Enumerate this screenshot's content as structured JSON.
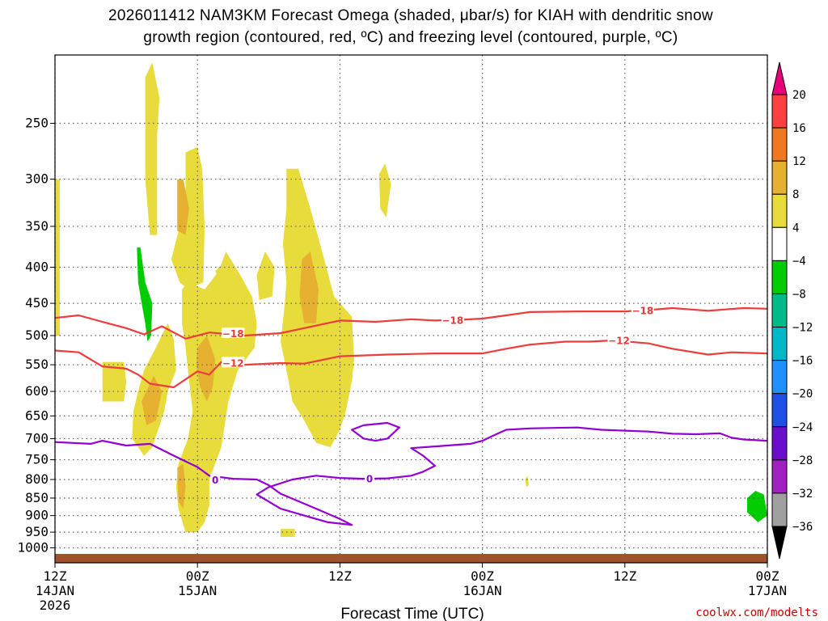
{
  "title_line1": "2026011412 NAM3KM Forecast Omega (shaded, μbar/s) for KIAH with dendritic snow",
  "title_line2": "growth region (contoured, red, ºC) and freezing level (contoured, purple, ºC)",
  "credit": "coolwx.com/modelts",
  "chart_data": {
    "type": "time-height",
    "xlabel": "Forecast Time (UTC)",
    "ylabel": "",
    "x_range_hours": [
      0,
      60
    ],
    "y_range_hpa": [
      1050,
      200
    ],
    "y_scale": "log",
    "grid": true,
    "y_ticks": [
      250,
      300,
      350,
      400,
      450,
      500,
      550,
      600,
      650,
      700,
      750,
      800,
      850,
      900,
      950,
      1000
    ],
    "x_ticks": [
      {
        "hour": 0,
        "label": "12Z",
        "sub": "14JAN",
        "sub2": "2026"
      },
      {
        "hour": 12,
        "label": "00Z",
        "sub": "15JAN",
        "sub2": ""
      },
      {
        "hour": 24,
        "label": "12Z",
        "sub": "",
        "sub2": ""
      },
      {
        "hour": 36,
        "label": "00Z",
        "sub": "16JAN",
        "sub2": ""
      },
      {
        "hour": 48,
        "label": "12Z",
        "sub": "",
        "sub2": ""
      },
      {
        "hour": 60,
        "label": "00Z",
        "sub": "17JAN",
        "sub2": ""
      }
    ],
    "colorbar": {
      "labels": [
        "20",
        "16",
        "12",
        "8",
        "4",
        "−4",
        "−8",
        "−12",
        "−16",
        "−20",
        "−24",
        "−28",
        "−32",
        "−36"
      ],
      "colors": [
        "#ff4040",
        "#f07820",
        "#e6b030",
        "#e8dc3c",
        "#ffffff",
        "#00cc00",
        "#00bb88",
        "#00b8c8",
        "#1e90ff",
        "#1e50e6",
        "#6a0dcc",
        "#a020c0",
        "#a0a0a0"
      ],
      "top_arrow_color": "#e8007a",
      "bottom_arrow_color": "#000000"
    },
    "contours": [
      {
        "name": "-18",
        "color": "#ee3b3b",
        "points": [
          [
            0,
            472
          ],
          [
            2,
            468
          ],
          [
            4,
            478
          ],
          [
            6,
            488
          ],
          [
            7.5,
            498
          ],
          [
            9,
            485
          ],
          [
            11,
            505
          ],
          [
            13,
            495
          ],
          [
            16,
            500
          ],
          [
            19,
            496
          ],
          [
            21,
            488
          ],
          [
            24,
            476
          ],
          [
            27,
            478
          ],
          [
            30,
            474
          ],
          [
            32,
            476
          ],
          [
            34,
            475
          ],
          [
            36,
            473
          ],
          [
            38,
            468
          ],
          [
            40,
            463
          ],
          [
            44,
            462
          ],
          [
            48,
            462
          ],
          [
            50,
            460
          ],
          [
            52,
            457
          ],
          [
            55,
            461
          ],
          [
            58,
            457
          ],
          [
            60,
            458
          ]
        ]
      },
      {
        "name": "-12",
        "color": "#ee3b3b",
        "points": [
          [
            0,
            525
          ],
          [
            2,
            528
          ],
          [
            4,
            553
          ],
          [
            6,
            557
          ],
          [
            7,
            568
          ],
          [
            8,
            585
          ],
          [
            10,
            592
          ],
          [
            12,
            562
          ],
          [
            13,
            568
          ],
          [
            14,
            545
          ],
          [
            16,
            550
          ],
          [
            19,
            547
          ],
          [
            21,
            548
          ],
          [
            24,
            535
          ],
          [
            28,
            532
          ],
          [
            32,
            530
          ],
          [
            36,
            530
          ],
          [
            38,
            522
          ],
          [
            40,
            515
          ],
          [
            43,
            510
          ],
          [
            45,
            510
          ],
          [
            47,
            508
          ],
          [
            50,
            513
          ],
          [
            52,
            522
          ],
          [
            55,
            532
          ],
          [
            57,
            528
          ],
          [
            60,
            530
          ]
        ]
      },
      {
        "name": "0",
        "color": "#9400d3",
        "points": [
          [
            0,
            708
          ],
          [
            3,
            712
          ],
          [
            4,
            705
          ],
          [
            6,
            716
          ],
          [
            8,
            712
          ],
          [
            10,
            740
          ],
          [
            12,
            768
          ],
          [
            13,
            790
          ],
          [
            15,
            798
          ],
          [
            17,
            800
          ],
          [
            18,
            815
          ],
          [
            19,
            838
          ],
          [
            22,
            880
          ],
          [
            24,
            910
          ],
          [
            25,
            928
          ],
          [
            23,
            920
          ],
          [
            21,
            900
          ],
          [
            19,
            880
          ],
          [
            17,
            840
          ],
          [
            18,
            820
          ],
          [
            20,
            800
          ],
          [
            22,
            790
          ],
          [
            24,
            796
          ],
          [
            26,
            798
          ],
          [
            28,
            797
          ],
          [
            30,
            790
          ],
          [
            31,
            780
          ],
          [
            32,
            765
          ],
          [
            31,
            740
          ],
          [
            30,
            722
          ],
          [
            32,
            718
          ],
          [
            35,
            712
          ],
          [
            36,
            705
          ],
          [
            37,
            692
          ],
          [
            38,
            680
          ],
          [
            40,
            677
          ],
          [
            42,
            676
          ],
          [
            44,
            675
          ],
          [
            46,
            680
          ],
          [
            48,
            682
          ],
          [
            50,
            684
          ],
          [
            52,
            689
          ],
          [
            54,
            690
          ],
          [
            56,
            688
          ],
          [
            57,
            698
          ],
          [
            58,
            702
          ],
          [
            60,
            705
          ]
        ]
      },
      {
        "name": "0-loop",
        "color": "#9400d3",
        "points": [
          [
            26,
            670
          ],
          [
            28,
            665
          ],
          [
            29,
            675
          ],
          [
            28,
            700
          ],
          [
            27,
            705
          ],
          [
            26,
            700
          ],
          [
            25,
            680
          ],
          [
            26,
            670
          ]
        ]
      }
    ],
    "contour_labels": [
      {
        "text": "−18",
        "color": "red",
        "hour": 15,
        "hpa": 496
      },
      {
        "text": "−12",
        "color": "red",
        "hour": 15,
        "hpa": 546
      },
      {
        "text": "−18",
        "color": "red",
        "hour": 33.5,
        "hpa": 475
      },
      {
        "text": "−18",
        "color": "red",
        "hour": 49.5,
        "hpa": 460
      },
      {
        "text": "−12",
        "color": "red",
        "hour": 47.5,
        "hpa": 507
      },
      {
        "text": "0",
        "color": "purple",
        "hour": 13.5,
        "hpa": 800
      },
      {
        "text": "0",
        "color": "purple",
        "hour": 26.5,
        "hpa": 797
      }
    ],
    "omega_regions": [
      {
        "color": "#e8dc3c",
        "points": [
          [
            7.6,
            215
          ],
          [
            8.2,
            205
          ],
          [
            8.8,
            230
          ],
          [
            8.6,
            260
          ],
          [
            8.6,
            360
          ],
          [
            8,
            360
          ],
          [
            7.6,
            300
          ]
        ]
      },
      {
        "color": "#e8dc3c",
        "points": [
          [
            0,
            300
          ],
          [
            0.4,
            300
          ],
          [
            0.4,
            500
          ],
          [
            0,
            500
          ]
        ]
      },
      {
        "color": "#e8dc3c",
        "points": [
          [
            4,
            545
          ],
          [
            5.8,
            545
          ],
          [
            6,
            580
          ],
          [
            5.8,
            620
          ],
          [
            4,
            620
          ]
        ]
      },
      {
        "color": "#e8dc3c",
        "points": [
          [
            7,
            600
          ],
          [
            7.5,
            560
          ],
          [
            8.5,
            520
          ],
          [
            9.5,
            480
          ],
          [
            10,
            505
          ],
          [
            10.2,
            560
          ],
          [
            9.5,
            600
          ],
          [
            9.2,
            640
          ],
          [
            8.2,
            720
          ],
          [
            7.5,
            740
          ],
          [
            6.5,
            700
          ],
          [
            6.6,
            640
          ]
        ]
      },
      {
        "color": "#e8dc3c",
        "points": [
          [
            11,
            275
          ],
          [
            12,
            270
          ],
          [
            12.4,
            290
          ],
          [
            12.6,
            350
          ],
          [
            12.5,
            420
          ],
          [
            11.2,
            430
          ],
          [
            10.5,
            420
          ],
          [
            9.8,
            390
          ],
          [
            10.5,
            350
          ],
          [
            11,
            330
          ]
        ]
      },
      {
        "color": "#e8dc3c",
        "points": [
          [
            10.7,
            430
          ],
          [
            11.2,
            420
          ],
          [
            12.6,
            430
          ],
          [
            13.8,
            405
          ],
          [
            14.4,
            380
          ],
          [
            15.6,
            410
          ],
          [
            16.6,
            440
          ],
          [
            17,
            480
          ],
          [
            16.8,
            520
          ],
          [
            15.4,
            560
          ],
          [
            14.6,
            620
          ],
          [
            14,
            720
          ],
          [
            13,
            800
          ],
          [
            13,
            870
          ],
          [
            12.6,
            920
          ],
          [
            12,
            950
          ],
          [
            11,
            950
          ],
          [
            10.4,
            880
          ],
          [
            10.2,
            820
          ],
          [
            10.4,
            760
          ],
          [
            11.2,
            700
          ],
          [
            11.6,
            640
          ],
          [
            11.3,
            580
          ],
          [
            11,
            520
          ],
          [
            10.7,
            480
          ]
        ]
      },
      {
        "color": "#e8dc3c",
        "points": [
          [
            13.5,
            405
          ],
          [
            14.5,
            390
          ],
          [
            15.5,
            410
          ],
          [
            15.2,
            450
          ],
          [
            14.6,
            470
          ],
          [
            14.2,
            430
          ]
        ]
      },
      {
        "color": "#e8dc3c",
        "points": [
          [
            17,
            410
          ],
          [
            17.7,
            380
          ],
          [
            18.5,
            400
          ],
          [
            18.3,
            440
          ],
          [
            17.2,
            445
          ]
        ]
      },
      {
        "color": "#e8dc3c",
        "points": [
          [
            19.5,
            290
          ],
          [
            20.5,
            290
          ],
          [
            21.5,
            330
          ],
          [
            22.5,
            380
          ],
          [
            23.5,
            440
          ],
          [
            25,
            470
          ],
          [
            25.2,
            540
          ],
          [
            25,
            580
          ],
          [
            24.5,
            640
          ],
          [
            24,
            680
          ],
          [
            23.2,
            720
          ],
          [
            22,
            710
          ],
          [
            21,
            660
          ],
          [
            20,
            620
          ],
          [
            19.5,
            560
          ],
          [
            19,
            510
          ],
          [
            19.3,
            460
          ],
          [
            19.5,
            420
          ],
          [
            19.2,
            370
          ],
          [
            19.5,
            330
          ]
        ]
      },
      {
        "color": "#e8dc3c",
        "points": [
          [
            27.3,
            295
          ],
          [
            27.8,
            285
          ],
          [
            28.3,
            305
          ],
          [
            27.9,
            340
          ],
          [
            27.4,
            330
          ]
        ]
      },
      {
        "color": "#e8dc3c",
        "points": [
          [
            19,
            940
          ],
          [
            20.2,
            940
          ],
          [
            20.2,
            965
          ],
          [
            19,
            965
          ]
        ]
      },
      {
        "color": "#e8dc3c",
        "points": [
          [
            39.6,
            800
          ],
          [
            39.8,
            790
          ],
          [
            39.9,
            815
          ],
          [
            39.7,
            820
          ]
        ]
      },
      {
        "color": "#e6b030",
        "points": [
          [
            10.3,
            300
          ],
          [
            10.8,
            300
          ],
          [
            11.3,
            330
          ],
          [
            11,
            360
          ],
          [
            10.3,
            355
          ]
        ]
      },
      {
        "color": "#e6b030",
        "points": [
          [
            12,
            520
          ],
          [
            12.8,
            500
          ],
          [
            13.5,
            540
          ],
          [
            13.3,
            590
          ],
          [
            12.8,
            620
          ],
          [
            12.2,
            590
          ],
          [
            11.9,
            550
          ]
        ]
      },
      {
        "color": "#e6b030",
        "points": [
          [
            7.3,
            620
          ],
          [
            8.3,
            570
          ],
          [
            9,
            600
          ],
          [
            8.5,
            660
          ],
          [
            7.7,
            670
          ]
        ]
      },
      {
        "color": "#e6b030",
        "points": [
          [
            20.8,
            390
          ],
          [
            21.5,
            380
          ],
          [
            22.2,
            430
          ],
          [
            22,
            480
          ],
          [
            21,
            480
          ],
          [
            20.6,
            440
          ]
        ]
      },
      {
        "color": "#e6b030",
        "points": [
          [
            10.3,
            770
          ],
          [
            10.8,
            760
          ],
          [
            11,
            820
          ],
          [
            10.8,
            880
          ],
          [
            10.4,
            860
          ]
        ]
      },
      {
        "color": "#00cc00",
        "points": [
          [
            6.9,
            375
          ],
          [
            7.2,
            375
          ],
          [
            7.6,
            420
          ],
          [
            8.2,
            450
          ],
          [
            8.1,
            500
          ],
          [
            7.8,
            510
          ],
          [
            7.6,
            480
          ],
          [
            7.3,
            450
          ],
          [
            7,
            420
          ]
        ]
      },
      {
        "color": "#00cc00",
        "points": [
          [
            58.3,
            850
          ],
          [
            59,
            830
          ],
          [
            59.7,
            840
          ],
          [
            60,
            900
          ],
          [
            59.2,
            920
          ],
          [
            58.3,
            890
          ]
        ]
      }
    ]
  }
}
